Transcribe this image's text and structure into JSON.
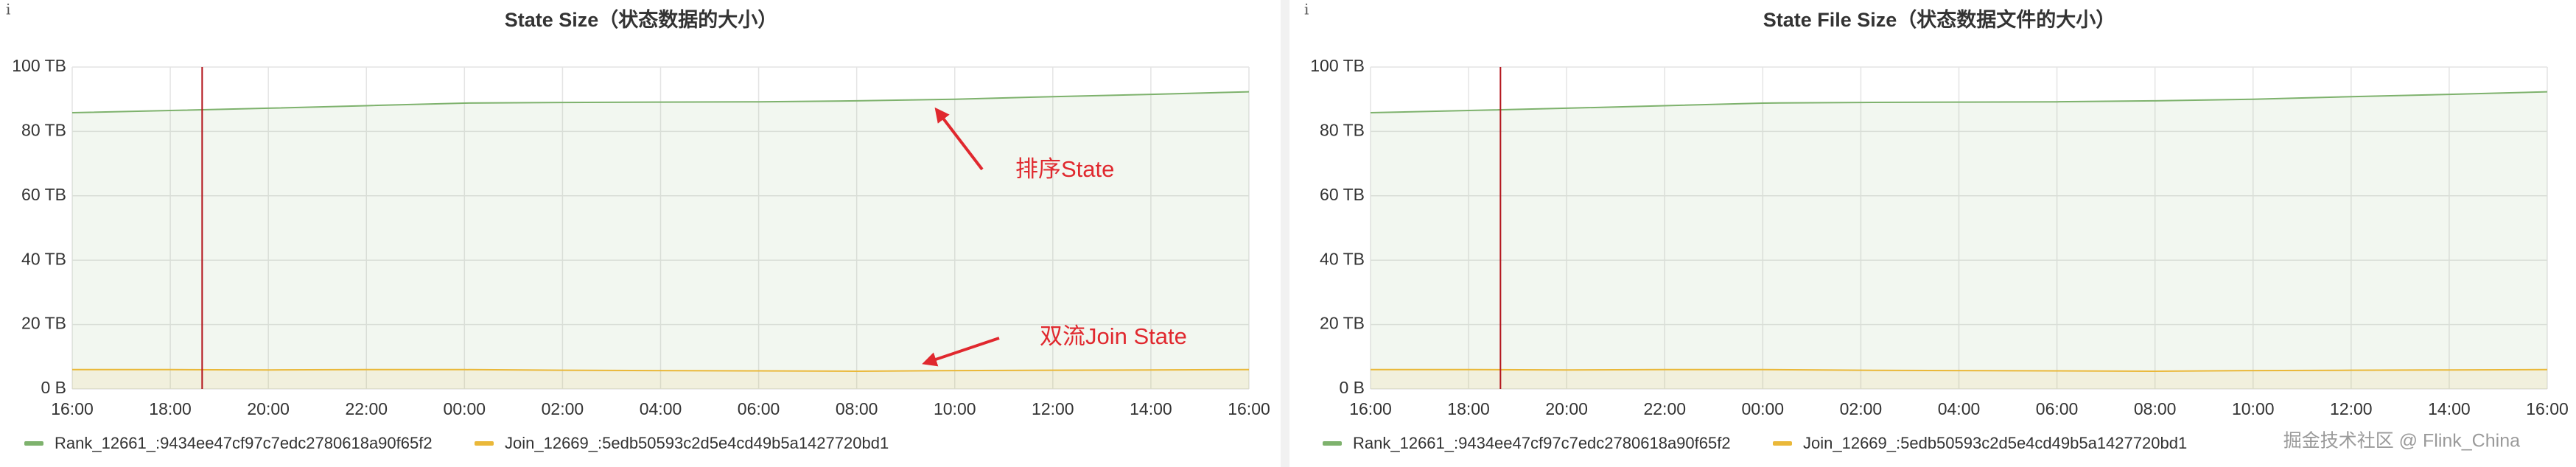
{
  "chart_data": [
    {
      "type": "line",
      "info": "i",
      "title": "State Size（状态数据的大小）",
      "x": [
        0,
        2,
        4,
        6,
        8,
        10,
        12,
        14,
        16,
        18,
        20,
        22,
        24
      ],
      "xlim": [
        0,
        24
      ],
      "xticks": [
        {
          "value": 0,
          "label": "16:00"
        },
        {
          "value": 2,
          "label": "18:00"
        },
        {
          "value": 4,
          "label": "20:00"
        },
        {
          "value": 6,
          "label": "22:00"
        },
        {
          "value": 8,
          "label": "00:00"
        },
        {
          "value": 10,
          "label": "02:00"
        },
        {
          "value": 12,
          "label": "04:00"
        },
        {
          "value": 14,
          "label": "06:00"
        },
        {
          "value": 16,
          "label": "08:00"
        },
        {
          "value": 18,
          "label": "10:00"
        },
        {
          "value": 20,
          "label": "12:00"
        },
        {
          "value": 22,
          "label": "14:00"
        },
        {
          "value": 24,
          "label": "16:00"
        }
      ],
      "ylim": [
        0,
        100
      ],
      "yticks": [
        {
          "value": 0,
          "label": "0 B"
        },
        {
          "value": 20,
          "label": "20 TB"
        },
        {
          "value": 40,
          "label": "40 TB"
        },
        {
          "value": 60,
          "label": "60 TB"
        },
        {
          "value": 80,
          "label": "80 TB"
        },
        {
          "value": 100,
          "label": "100 TB"
        }
      ],
      "grid": true,
      "vline_x": 2.65,
      "series": [
        {
          "name": "Rank_12661_:9434ee47cf97c7edc2780618a90f65f2",
          "color": "#7eb26d",
          "values": [
            85.8,
            86.5,
            87.2,
            88,
            88.8,
            89,
            89.1,
            89.2,
            89.5,
            90,
            90.8,
            91.5,
            92.3
          ]
        },
        {
          "name": "Join_12669_:5edb50593c2d5e4cd49b5a1427720bd1",
          "color": "#eab839",
          "values": [
            6,
            6,
            5.9,
            6,
            6,
            5.8,
            5.7,
            5.6,
            5.5,
            5.7,
            5.8,
            5.9,
            6
          ]
        }
      ],
      "annotations": [
        {
          "text": "排序State"
        },
        {
          "text": "双流Join State"
        }
      ]
    },
    {
      "type": "line",
      "info": "i",
      "title": "State File Size（状态数据文件的大小）",
      "x": [
        0,
        2,
        4,
        6,
        8,
        10,
        12,
        14,
        16,
        18,
        20,
        22,
        24
      ],
      "xlim": [
        0,
        24
      ],
      "xticks": [
        {
          "value": 0,
          "label": "16:00"
        },
        {
          "value": 2,
          "label": "18:00"
        },
        {
          "value": 4,
          "label": "20:00"
        },
        {
          "value": 6,
          "label": "22:00"
        },
        {
          "value": 8,
          "label": "00:00"
        },
        {
          "value": 10,
          "label": "02:00"
        },
        {
          "value": 12,
          "label": "04:00"
        },
        {
          "value": 14,
          "label": "06:00"
        },
        {
          "value": 16,
          "label": "08:00"
        },
        {
          "value": 18,
          "label": "10:00"
        },
        {
          "value": 20,
          "label": "12:00"
        },
        {
          "value": 22,
          "label": "14:00"
        },
        {
          "value": 24,
          "label": "16:00"
        }
      ],
      "ylim": [
        0,
        100
      ],
      "yticks": [
        {
          "value": 0,
          "label": "0 B"
        },
        {
          "value": 20,
          "label": "20 TB"
        },
        {
          "value": 40,
          "label": "40 TB"
        },
        {
          "value": 60,
          "label": "60 TB"
        },
        {
          "value": 80,
          "label": "80 TB"
        },
        {
          "value": 100,
          "label": "100 TB"
        }
      ],
      "grid": true,
      "vline_x": 2.65,
      "series": [
        {
          "name": "Rank_12661_:9434ee47cf97c7edc2780618a90f65f2",
          "color": "#7eb26d",
          "values": [
            85.8,
            86.5,
            87.2,
            88,
            88.8,
            89,
            89.1,
            89.2,
            89.5,
            90,
            90.8,
            91.5,
            92.3
          ]
        },
        {
          "name": "Join_12669_:5edb50593c2d5e4cd49b5a1427720bd1",
          "color": "#eab839",
          "values": [
            6,
            6,
            5.9,
            6,
            6,
            5.8,
            5.7,
            5.6,
            5.5,
            5.7,
            5.8,
            5.9,
            6
          ]
        }
      ]
    }
  ],
  "watermark": "掘金技术社区 @ Flink_China"
}
